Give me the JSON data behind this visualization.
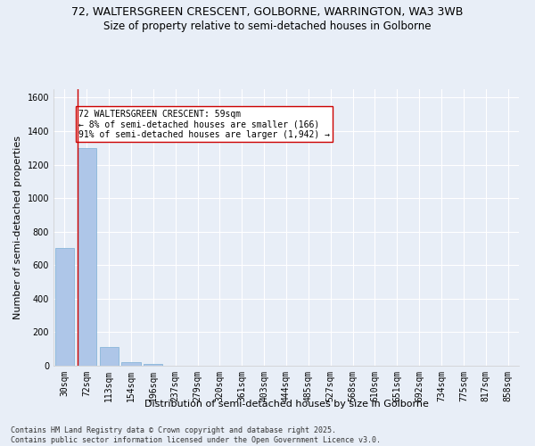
{
  "title_line1": "72, WALTERSGREEN CRESCENT, GOLBORNE, WARRINGTON, WA3 3WB",
  "title_line2": "Size of property relative to semi-detached houses in Golborne",
  "xlabel": "Distribution of semi-detached houses by size in Golborne",
  "ylabel": "Number of semi-detached properties",
  "categories": [
    "30sqm",
    "72sqm",
    "113sqm",
    "154sqm",
    "196sqm",
    "237sqm",
    "279sqm",
    "320sqm",
    "361sqm",
    "403sqm",
    "444sqm",
    "485sqm",
    "527sqm",
    "568sqm",
    "610sqm",
    "651sqm",
    "692sqm",
    "734sqm",
    "775sqm",
    "817sqm",
    "858sqm"
  ],
  "values": [
    700,
    1300,
    110,
    20,
    12,
    0,
    0,
    0,
    0,
    0,
    0,
    0,
    0,
    0,
    0,
    0,
    0,
    0,
    0,
    0,
    0
  ],
  "bar_color": "#aec6e8",
  "bar_edge_color": "#7bafd4",
  "highlight_bar_index": 1,
  "highlight_line_color": "#cc0000",
  "annotation_text": "72 WALTERSGREEN CRESCENT: 59sqm\n← 8% of semi-detached houses are smaller (166)\n91% of semi-detached houses are larger (1,942) →",
  "annotation_box_color": "#ffffff",
  "annotation_box_edge_color": "#cc0000",
  "ylim": [
    0,
    1650
  ],
  "yticks": [
    0,
    200,
    400,
    600,
    800,
    1000,
    1200,
    1400,
    1600
  ],
  "background_color": "#e8eef7",
  "grid_color": "#ffffff",
  "footer_line1": "Contains HM Land Registry data © Crown copyright and database right 2025.",
  "footer_line2": "Contains public sector information licensed under the Open Government Licence v3.0.",
  "title_fontsize": 9,
  "subtitle_fontsize": 8.5,
  "axis_label_fontsize": 8,
  "tick_fontsize": 7,
  "annotation_fontsize": 7,
  "footer_fontsize": 6
}
